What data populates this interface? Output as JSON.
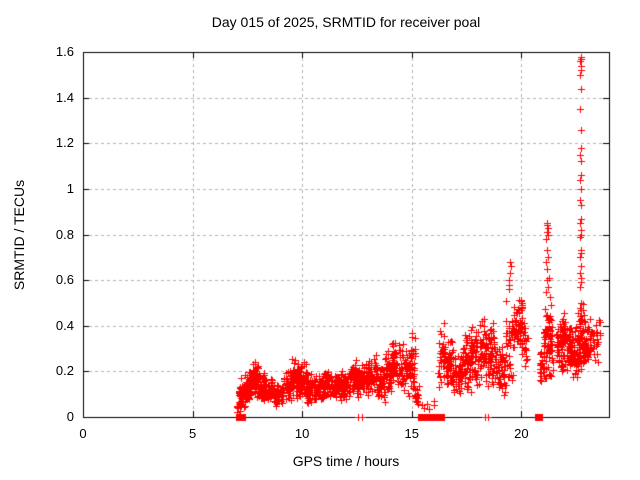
{
  "colors": {
    "marker": "#ff0000",
    "grid": "#b3b3b3",
    "axis": "#000000",
    "background": "#ffffff",
    "text": "#000000"
  },
  "chart_data": {
    "type": "scatter",
    "title": "Day 015 of 2025, SRMTID for receiver poal",
    "xlabel": "GPS time / hours",
    "ylabel": "SRMTID / TECUs",
    "xlim": [
      0,
      24
    ],
    "ylim": [
      0,
      1.6
    ],
    "xticks": [
      0,
      5,
      10,
      15,
      20
    ],
    "xtick_labels": [
      "0",
      "5",
      "10",
      "15",
      "20"
    ],
    "yticks": [
      0,
      0.2,
      0.4,
      0.6,
      0.8,
      1.0,
      1.2,
      1.4,
      1.6
    ],
    "ytick_labels": [
      "0",
      "0.2",
      "0.4",
      "0.6",
      "0.8",
      "1",
      "1.2",
      "1.4",
      "1.6"
    ],
    "grid": true,
    "legend": false,
    "marker": "plus",
    "seed": 20250115,
    "band_segments": [
      [
        7.0,
        7.15,
        0.0,
        0.08,
        10
      ],
      [
        7.1,
        7.4,
        0.02,
        0.18,
        40
      ],
      [
        7.4,
        7.7,
        0.06,
        0.22,
        50
      ],
      [
        7.7,
        8.0,
        0.08,
        0.26,
        55
      ],
      [
        8.0,
        8.3,
        0.06,
        0.22,
        50
      ],
      [
        8.3,
        8.7,
        0.05,
        0.18,
        45
      ],
      [
        8.7,
        9.1,
        0.04,
        0.16,
        45
      ],
      [
        9.1,
        9.5,
        0.06,
        0.22,
        50
      ],
      [
        9.5,
        9.9,
        0.07,
        0.26,
        55
      ],
      [
        9.9,
        10.2,
        0.06,
        0.27,
        50
      ],
      [
        10.2,
        10.6,
        0.05,
        0.2,
        50
      ],
      [
        10.6,
        11.0,
        0.06,
        0.2,
        50
      ],
      [
        11.0,
        11.4,
        0.07,
        0.22,
        50
      ],
      [
        11.4,
        11.8,
        0.06,
        0.2,
        50
      ],
      [
        11.8,
        12.2,
        0.07,
        0.22,
        50
      ],
      [
        12.2,
        12.6,
        0.08,
        0.27,
        50
      ],
      [
        12.6,
        13.0,
        0.08,
        0.25,
        50
      ],
      [
        13.0,
        13.4,
        0.1,
        0.28,
        50
      ],
      [
        13.4,
        13.8,
        0.06,
        0.22,
        45
      ],
      [
        13.8,
        14.1,
        0.08,
        0.3,
        45
      ],
      [
        14.1,
        14.45,
        0.1,
        0.36,
        45
      ],
      [
        14.45,
        14.9,
        0.08,
        0.33,
        40
      ],
      [
        14.9,
        15.15,
        0.05,
        0.38,
        35
      ],
      [
        15.1,
        15.4,
        0.04,
        0.15,
        15
      ],
      [
        15.4,
        16.1,
        0.02,
        0.08,
        6
      ],
      [
        16.2,
        16.5,
        0.1,
        0.43,
        35
      ],
      [
        16.5,
        16.9,
        0.1,
        0.35,
        45
      ],
      [
        16.9,
        17.3,
        0.07,
        0.3,
        45
      ],
      [
        17.3,
        17.7,
        0.1,
        0.38,
        50
      ],
      [
        17.7,
        18.1,
        0.1,
        0.44,
        50
      ],
      [
        18.1,
        18.5,
        0.12,
        0.47,
        50
      ],
      [
        18.5,
        18.9,
        0.1,
        0.45,
        45
      ],
      [
        18.9,
        19.3,
        0.08,
        0.35,
        40
      ],
      [
        19.3,
        19.7,
        0.15,
        0.55,
        45
      ],
      [
        19.7,
        20.05,
        0.25,
        0.57,
        45
      ],
      [
        20.05,
        20.3,
        0.2,
        0.45,
        20
      ],
      [
        20.8,
        21.0,
        0.13,
        0.3,
        20
      ],
      [
        21.0,
        21.45,
        0.15,
        0.42,
        50
      ],
      [
        21.05,
        21.35,
        0.3,
        0.53,
        25
      ],
      [
        21.6,
        22.2,
        0.17,
        0.45,
        70
      ],
      [
        21.8,
        22.0,
        0.2,
        0.5,
        25
      ],
      [
        22.2,
        22.6,
        0.15,
        0.42,
        70
      ],
      [
        22.6,
        22.85,
        0.2,
        0.52,
        55
      ],
      [
        22.85,
        23.2,
        0.18,
        0.48,
        45
      ],
      [
        23.2,
        23.6,
        0.22,
        0.45,
        25
      ]
    ],
    "outlier_points": [
      [
        19.42,
        0.56
      ],
      [
        19.46,
        0.6
      ],
      [
        19.5,
        0.63
      ],
      [
        19.53,
        0.66
      ],
      [
        19.49,
        0.68
      ],
      [
        19.44,
        0.58
      ],
      [
        21.12,
        0.55
      ],
      [
        21.2,
        0.57
      ],
      [
        21.16,
        0.6
      ],
      [
        21.24,
        0.61
      ],
      [
        21.19,
        0.65
      ],
      [
        21.14,
        0.68
      ],
      [
        21.22,
        0.7
      ],
      [
        21.18,
        0.73
      ],
      [
        21.13,
        0.78
      ],
      [
        21.2,
        0.8
      ],
      [
        21.16,
        0.81
      ],
      [
        21.23,
        0.83
      ],
      [
        21.19,
        0.85
      ],
      [
        21.15,
        0.84
      ],
      [
        22.66,
        0.57
      ],
      [
        22.7,
        0.59
      ],
      [
        22.73,
        0.61
      ],
      [
        22.68,
        0.63
      ],
      [
        22.71,
        0.66
      ],
      [
        22.69,
        0.7
      ],
      [
        22.72,
        0.72
      ],
      [
        22.7,
        0.73
      ],
      [
        22.67,
        0.79
      ],
      [
        22.71,
        0.8
      ],
      [
        22.74,
        0.82
      ],
      [
        22.69,
        0.85
      ],
      [
        22.72,
        0.87
      ],
      [
        22.7,
        0.93
      ],
      [
        22.68,
        0.95
      ],
      [
        22.71,
        1.0
      ],
      [
        22.69,
        1.04
      ],
      [
        22.72,
        1.06
      ],
      [
        22.7,
        1.12
      ],
      [
        22.68,
        1.15
      ],
      [
        22.71,
        1.18
      ],
      [
        22.7,
        1.26
      ],
      [
        22.69,
        1.35
      ],
      [
        22.71,
        1.44
      ],
      [
        22.67,
        1.5
      ],
      [
        22.7,
        1.52
      ],
      [
        22.73,
        1.54
      ],
      [
        22.69,
        1.56
      ],
      [
        22.72,
        1.57
      ],
      [
        22.7,
        1.58
      ]
    ],
    "zero_clusters": [
      {
        "x0": 7.05,
        "x1": 7.28,
        "style": "square"
      },
      {
        "x0": 12.55,
        "x1": 12.72,
        "style": "plus"
      },
      {
        "x0": 15.38,
        "x1": 15.85,
        "style": "square"
      },
      {
        "x0": 15.93,
        "x1": 16.1,
        "style": "square"
      },
      {
        "x0": 16.18,
        "x1": 16.35,
        "style": "square"
      },
      {
        "x0": 18.34,
        "x1": 18.5,
        "style": "plus"
      },
      {
        "x0": 20.7,
        "x1": 20.85,
        "style": "square"
      }
    ]
  }
}
